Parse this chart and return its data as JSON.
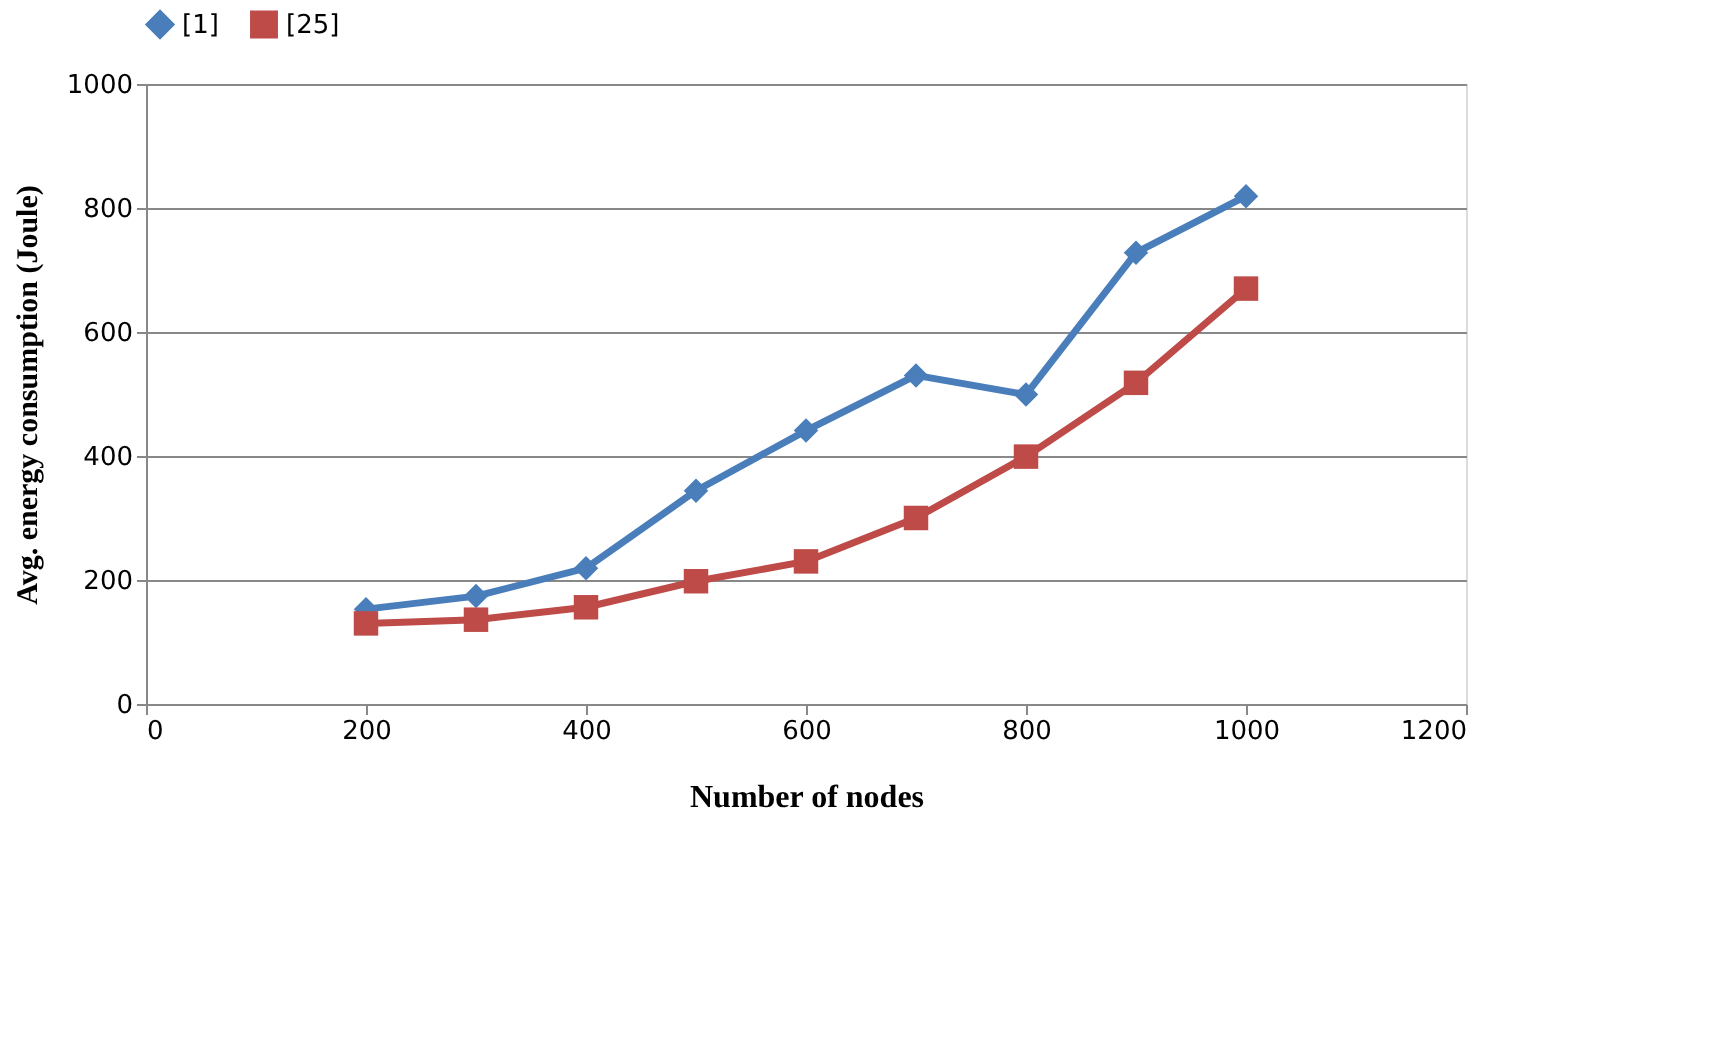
{
  "chart_data": {
    "type": "line",
    "xlabel": "Number of nodes",
    "ylabel": "Avg. energy consumption (Joule)",
    "x": [
      200,
      300,
      400,
      500,
      600,
      700,
      800,
      900,
      1000
    ],
    "series": [
      {
        "name": "[1]",
        "color": "#4a7ebb",
        "marker": "diamond",
        "values": [
          153,
          174,
          219,
          344,
          441,
          530,
          499,
          728,
          819
        ]
      },
      {
        "name": "[25]",
        "color": "#be4b48",
        "marker": "square",
        "values": [
          130,
          136,
          156,
          198,
          230,
          300,
          399,
          518,
          670
        ]
      }
    ],
    "xlim": [
      0,
      1200
    ],
    "xticks": [
      0,
      200,
      400,
      600,
      800,
      1000,
      1200
    ],
    "ylim": [
      0,
      1000
    ],
    "yticks": [
      0,
      200,
      400,
      600,
      800,
      1000
    ],
    "grid": "y",
    "legend": "top",
    "line_style": "solid"
  }
}
